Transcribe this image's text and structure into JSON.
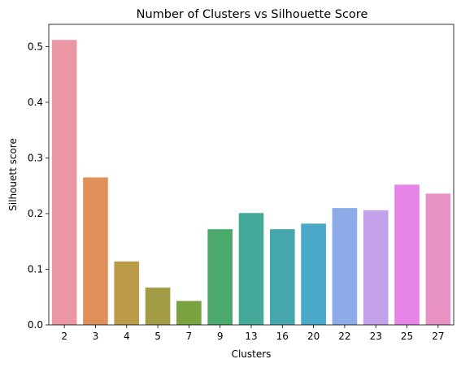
{
  "chart_data": {
    "type": "bar",
    "title": "Number of Clusters vs Silhouette Score",
    "xlabel": "Clusters",
    "ylabel": "Silhouett score",
    "categories": [
      "2",
      "3",
      "4",
      "5",
      "7",
      "9",
      "13",
      "16",
      "20",
      "22",
      "23",
      "25",
      "27"
    ],
    "values": [
      0.512,
      0.265,
      0.114,
      0.067,
      0.043,
      0.172,
      0.201,
      0.172,
      0.182,
      0.21,
      0.206,
      0.252,
      0.236
    ],
    "ylim": [
      0,
      0.54
    ],
    "yticks": [
      "0.0",
      "0.1",
      "0.2",
      "0.3",
      "0.4",
      "0.5"
    ],
    "grid": false,
    "colors": [
      "#ea96a3",
      "#e0915a",
      "#bb9b48",
      "#a19c45",
      "#7ba241",
      "#4aa96b",
      "#45a99a",
      "#46a7ae",
      "#4aa9c9",
      "#8cabe8",
      "#c2a1ea",
      "#e684e8",
      "#e893c4"
    ]
  }
}
